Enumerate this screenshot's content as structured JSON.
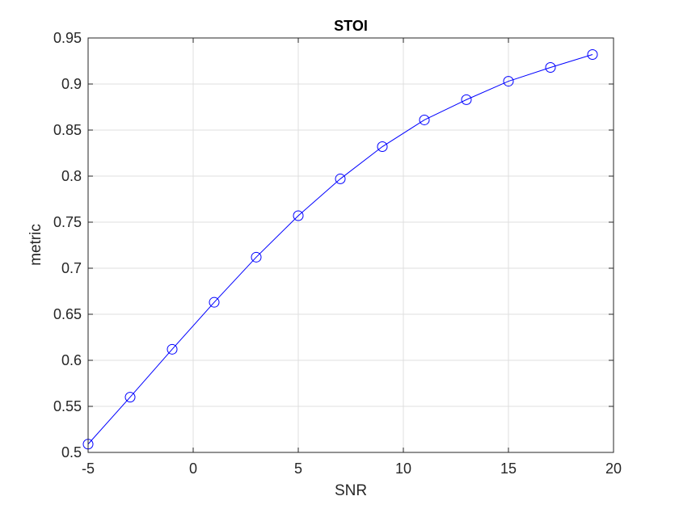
{
  "chart_data": {
    "type": "line",
    "title": "STOI",
    "xlabel": "SNR",
    "ylabel": "metric",
    "xlim": [
      -5,
      20
    ],
    "ylim": [
      0.5,
      0.95
    ],
    "xticks": [
      -5,
      0,
      5,
      10,
      15,
      20
    ],
    "yticks": [
      0.5,
      0.55,
      0.6,
      0.65,
      0.7,
      0.75,
      0.8,
      0.85,
      0.9,
      0.95
    ],
    "xtick_labels": [
      "-5",
      "0",
      "5",
      "10",
      "15",
      "20"
    ],
    "ytick_labels": [
      "0.5",
      "0.55",
      "0.6",
      "0.65",
      "0.7",
      "0.75",
      "0.8",
      "0.85",
      "0.9",
      "0.95"
    ],
    "grid": true,
    "legend": null,
    "series": [
      {
        "name": "STOI",
        "color": "#0000ff",
        "marker": "circle",
        "x": [
          -5,
          -3,
          -1,
          1,
          3,
          5,
          7,
          9,
          11,
          13,
          15,
          17,
          19
        ],
        "y": [
          0.509,
          0.56,
          0.612,
          0.663,
          0.712,
          0.757,
          0.797,
          0.832,
          0.861,
          0.883,
          0.903,
          0.918,
          0.932
        ]
      }
    ]
  },
  "colors": {
    "line": "#0000ff",
    "axis": "#262626",
    "grid": "#dfdfdf",
    "text": "#262626",
    "background": "#ffffff"
  }
}
